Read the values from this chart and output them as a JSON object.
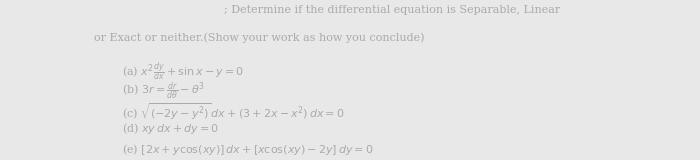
{
  "title_line1": "; Determine if the differential equation is Separable, Linear",
  "title_line2": "or Exact or neither.(Show your work as how you conclude)",
  "eq_a": "(a) $x^2\\frac{dy}{dx} + \\sin x - y = 0$",
  "eq_b": "(b) $3r = \\frac{dr}{d\\theta} - \\theta^3$",
  "eq_c": "(c) $\\sqrt{(-2y - y^2)}\\,dx + (3 + 2x - x^2)\\,dx = 0$",
  "eq_d": "(d) $xy\\,dx + dy = 0$",
  "eq_e": "(e) $[2x + y\\cos(xy)]\\,dx + [x\\cos(xy) - 2y]\\,dy = 0$",
  "bg_color": "#e8e8e8",
  "text_color": "#aaaaaa",
  "title_fontsize": 8.0,
  "eq_fontsize": 8.0
}
